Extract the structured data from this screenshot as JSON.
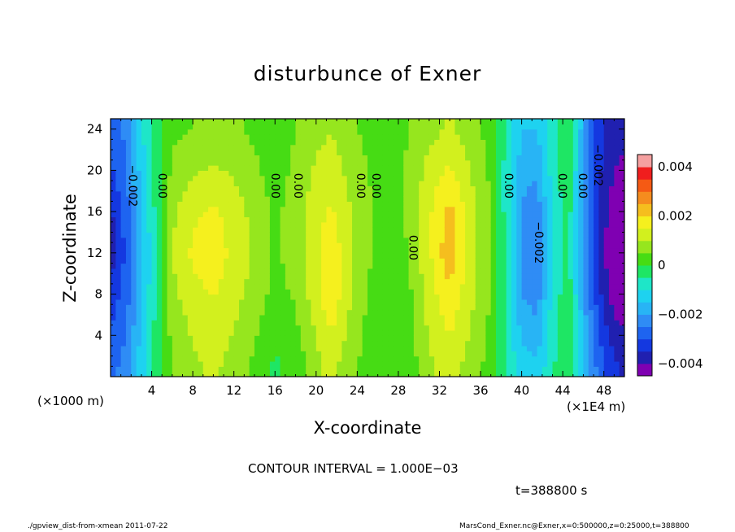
{
  "chart_data": {
    "type": "heatmap",
    "title": "disturbunce of Exner",
    "xlabel": "X-coordinate",
    "ylabel": "Z-coordinate",
    "x_unit_note": "(×1000 m)",
    "x_scale_note": "(×1E4 m)",
    "xlim": [
      0,
      50
    ],
    "ylim": [
      0,
      25
    ],
    "x_ticks": [
      4,
      8,
      12,
      16,
      20,
      24,
      28,
      32,
      36,
      40,
      44,
      48
    ],
    "y_ticks": [
      4,
      8,
      12,
      16,
      20,
      24
    ],
    "colorbar": {
      "min": -0.004,
      "max": 0.004,
      "tick_values": [
        0.004,
        0.002,
        0,
        -0.002,
        -0.004
      ],
      "tick_labels": [
        "0.004",
        "0.002",
        "0",
        "−0.002",
        "−0.004"
      ],
      "levels": [
        {
          "lo": -0.0045,
          "hi": -0.004,
          "color": "#7f00b2"
        },
        {
          "lo": -0.004,
          "hi": -0.0035,
          "color": "#2020b0"
        },
        {
          "lo": -0.0035,
          "hi": -0.003,
          "color": "#1438e0"
        },
        {
          "lo": -0.003,
          "hi": -0.0025,
          "color": "#1e64f0"
        },
        {
          "lo": -0.0025,
          "hi": -0.002,
          "color": "#2f8cf5"
        },
        {
          "lo": -0.002,
          "hi": -0.0015,
          "color": "#28b4f5"
        },
        {
          "lo": -0.0015,
          "hi": -0.001,
          "color": "#1ed2f0"
        },
        {
          "lo": -0.001,
          "hi": -0.0005,
          "color": "#1ee6c8"
        },
        {
          "lo": -0.0005,
          "hi": 0,
          "color": "#1ee664"
        },
        {
          "lo": 0,
          "hi": 0.0005,
          "color": "#46dc14"
        },
        {
          "lo": 0.0005,
          "hi": 0.001,
          "color": "#96e61e"
        },
        {
          "lo": 0.001,
          "hi": 0.0015,
          "color": "#d2f01e"
        },
        {
          "lo": 0.0015,
          "hi": 0.002,
          "color": "#f5f01e"
        },
        {
          "lo": 0.002,
          "hi": 0.0025,
          "color": "#f5be1e"
        },
        {
          "lo": 0.0025,
          "hi": 0.003,
          "color": "#f58c1e"
        },
        {
          "lo": 0.003,
          "hi": 0.0035,
          "color": "#f55a14"
        },
        {
          "lo": 0.0035,
          "hi": 0.004,
          "color": "#f01e1e"
        },
        {
          "lo": 0.004,
          "hi": 0.0045,
          "color": "#f5a0a0"
        }
      ]
    },
    "columns": [
      {
        "x": 0,
        "values": [
          -0.0027,
          -0.003,
          -0.0034,
          -0.0038,
          -0.0036,
          -0.0031,
          -0.0028
        ]
      },
      {
        "x": 1.5,
        "values": [
          -0.0023,
          -0.0026,
          -0.0028,
          -0.0029,
          -0.0028,
          -0.0025,
          -0.0024
        ]
      },
      {
        "x": 3,
        "values": [
          -0.0012,
          -0.0014,
          -0.0016,
          -0.0017,
          -0.0016,
          -0.0013,
          -0.0011
        ]
      },
      {
        "x": 4.5,
        "values": [
          -0.0002,
          -0.0003,
          -0.0004,
          -0.0004,
          -0.0003,
          -0.0002,
          -0.0001
        ]
      },
      {
        "x": 6,
        "values": [
          0.0005,
          0.0007,
          0.0009,
          0.001,
          0.0009,
          0.0006,
          0.0004
        ]
      },
      {
        "x": 8,
        "values": [
          0.0009,
          0.0011,
          0.0014,
          0.0016,
          0.0014,
          0.0009,
          0.0005
        ]
      },
      {
        "x": 10,
        "values": [
          0.0011,
          0.0013,
          0.0016,
          0.0017,
          0.0016,
          0.0011,
          0.0006
        ]
      },
      {
        "x": 12,
        "values": [
          0.0008,
          0.001,
          0.0013,
          0.0014,
          0.0013,
          0.0009,
          0.0006
        ]
      },
      {
        "x": 14,
        "values": [
          0.0004,
          0.0006,
          0.0008,
          0.0009,
          0.0008,
          0.0006,
          0.0004
        ]
      },
      {
        "x": 16,
        "values": [
          -0.0001,
          0.0002,
          0.0004,
          0.0004,
          0.0004,
          0.0003,
          0.0002
        ]
      },
      {
        "x": 18,
        "values": [
          0.0002,
          0.0004,
          0.0006,
          0.0007,
          0.0007,
          0.0006,
          0.0005
        ]
      },
      {
        "x": 20,
        "values": [
          0.0008,
          0.0011,
          0.0014,
          0.0014,
          0.0013,
          0.0011,
          0.0008
        ]
      },
      {
        "x": 21.5,
        "values": [
          0.0012,
          0.0016,
          0.002,
          0.0019,
          0.0016,
          0.0013,
          0.001
        ]
      },
      {
        "x": 23,
        "values": [
          0.0007,
          0.001,
          0.0012,
          0.0012,
          0.0011,
          0.0009,
          0.0006
        ]
      },
      {
        "x": 25,
        "values": [
          0.0003,
          0.0004,
          0.0005,
          0.0006,
          0.0006,
          0.0005,
          0.0004
        ]
      },
      {
        "x": 27,
        "values": [
          0.0001,
          0.0001,
          0.0002,
          0.0002,
          0.0002,
          0.0002,
          0.0001
        ]
      },
      {
        "x": 29,
        "values": [
          0.0002,
          0.0003,
          0.0004,
          0.0005,
          0.0006,
          0.0006,
          0.0005
        ]
      },
      {
        "x": 31,
        "values": [
          0.0009,
          0.0011,
          0.0013,
          0.0014,
          0.0014,
          0.0012,
          0.0008
        ]
      },
      {
        "x": 33,
        "values": [
          0.0012,
          0.0016,
          0.002,
          0.0024,
          0.0022,
          0.0016,
          0.0011
        ]
      },
      {
        "x": 35,
        "values": [
          0.0008,
          0.001,
          0.0012,
          0.0013,
          0.0012,
          0.001,
          0.0007
        ]
      },
      {
        "x": 37,
        "values": [
          0.0003,
          0.0004,
          0.0005,
          0.0005,
          0.0005,
          0.0004,
          0.0003
        ]
      },
      {
        "x": 38.5,
        "values": [
          -0.0005,
          -0.0006,
          -0.0006,
          -0.0007,
          -0.0007,
          -0.0007,
          -0.0006
        ]
      },
      {
        "x": 40,
        "values": [
          -0.0013,
          -0.0017,
          -0.0021,
          -0.0022,
          -0.0021,
          -0.0018,
          -0.0015
        ]
      },
      {
        "x": 41.5,
        "values": [
          -0.0014,
          -0.0019,
          -0.0024,
          -0.0025,
          -0.0023,
          -0.0019,
          -0.0015
        ]
      },
      {
        "x": 43,
        "values": [
          -0.0006,
          -0.0007,
          -0.0009,
          -0.001,
          -0.0009,
          -0.0008,
          -0.0007
        ]
      },
      {
        "x": 44.5,
        "values": [
          0.0001,
          0.0,
          -0.0002,
          -0.0003,
          -0.0002,
          -0.0001,
          0.0
        ]
      },
      {
        "x": 46,
        "values": [
          -0.0015,
          -0.0017,
          -0.0019,
          -0.002,
          -0.002,
          -0.0019,
          -0.0018
        ]
      },
      {
        "x": 47.5,
        "values": [
          -0.0027,
          -0.0031,
          -0.0034,
          -0.0036,
          -0.0036,
          -0.0034,
          -0.0033
        ]
      },
      {
        "x": 49,
        "values": [
          -0.0034,
          -0.0039,
          -0.0044,
          -0.0046,
          -0.0043,
          -0.004,
          -0.0038
        ]
      },
      {
        "x": 50,
        "values": [
          -0.0036,
          -0.004,
          -0.0046,
          -0.0048,
          -0.0044,
          -0.0041,
          -0.0039
        ]
      }
    ],
    "z_levels": [
      1,
      5,
      9,
      12,
      16,
      20,
      24
    ],
    "contour_labels": [
      {
        "text": "−0.002",
        "x": 2.1,
        "z": 18.5
      },
      {
        "text": "0.00",
        "x": 5.0,
        "z": 18.5
      },
      {
        "text": "0.00",
        "x": 16.0,
        "z": 18.5
      },
      {
        "text": "0.00",
        "x": 18.2,
        "z": 18.5
      },
      {
        "text": "0.00",
        "x": 24.3,
        "z": 18.5
      },
      {
        "text": "0.00",
        "x": 25.8,
        "z": 18.5
      },
      {
        "text": "0.00",
        "x": 29.4,
        "z": 12.5
      },
      {
        "text": "0.00",
        "x": 38.7,
        "z": 18.5
      },
      {
        "text": "−0.002",
        "x": 41.6,
        "z": 13.0
      },
      {
        "text": "0.00",
        "x": 43.9,
        "z": 18.5
      },
      {
        "text": "0.00",
        "x": 45.9,
        "z": 18.5
      },
      {
        "text": "−0.002",
        "x": 47.4,
        "z": 20.5
      }
    ]
  },
  "annotations": {
    "contour_interval": "CONTOUR INTERVAL = 1.000E−03",
    "time": "t=388800 s",
    "footer_left": "./gpview_dist-from-xmean   2011-07-22",
    "footer_right": "MarsCond_Exner.nc@Exner,x=0:500000,z=0:25000,t=388800"
  }
}
